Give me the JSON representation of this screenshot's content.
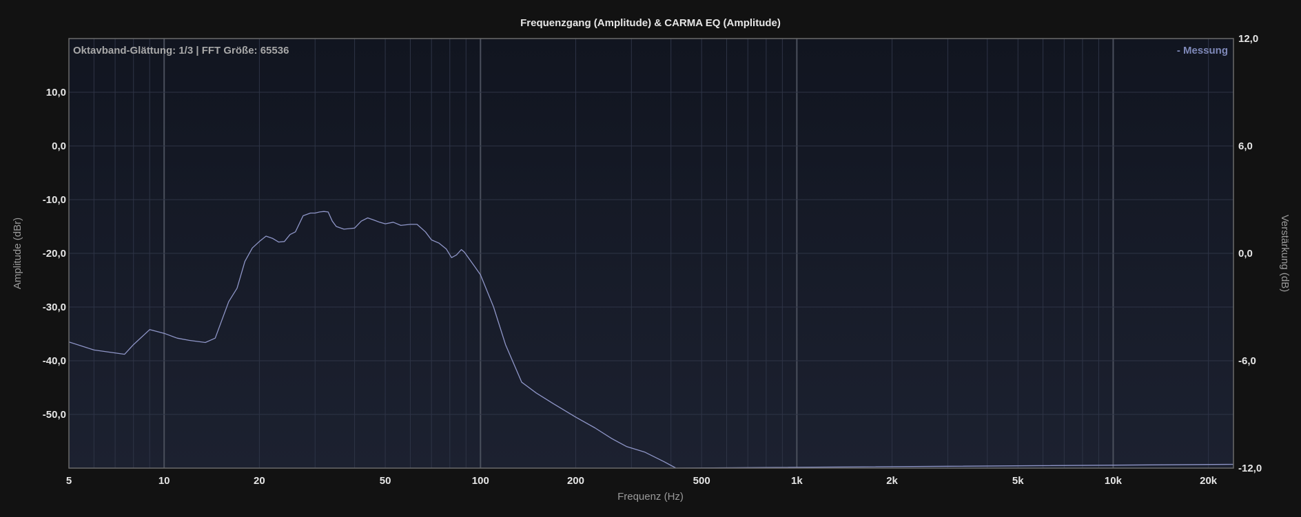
{
  "colors": {
    "page_background": "#121212",
    "plot_background_top": "#111520",
    "plot_background_bottom": "#1c2130",
    "grid_minor": "#2e3446",
    "grid_major": "#4a4f5c",
    "plot_border": "#6a6a6a",
    "series_line": "#8f96c8",
    "legend_text": "#7e88b8"
  },
  "chart_data": {
    "type": "line",
    "title": "Frequenzgang (Amplitude) & CARMA EQ (Amplitude)",
    "info_text": "Oktavband-Glättung: 1/3 | FFT Größe: 65536",
    "xlabel": "Frequenz (Hz)",
    "ylabel": "Amplitude (dBr)",
    "y2label": "Verstärkung (dB)",
    "x_scale": "log",
    "xlim": [
      5,
      24000
    ],
    "ylim": [
      -60,
      20
    ],
    "y2lim": [
      -12,
      12
    ],
    "grid": true,
    "legend_position": "top-right",
    "x_ticks": [
      5,
      10,
      20,
      50,
      100,
      200,
      500,
      1000,
      2000,
      5000,
      10000,
      20000
    ],
    "x_tick_labels": [
      "5",
      "10",
      "20",
      "50",
      "100",
      "200",
      "500",
      "1k",
      "2k",
      "5k",
      "10k",
      "20k"
    ],
    "y_ticks": [
      10,
      0,
      -10,
      -20,
      -30,
      -40,
      -50
    ],
    "y_tick_labels": [
      "10,0",
      "0,0",
      "-10,0",
      "-20,0",
      "-30,0",
      "-40,0",
      "-50,0"
    ],
    "y2_ticks": [
      12,
      6,
      0,
      -6,
      -12
    ],
    "y2_tick_labels": [
      "12,0",
      "6,0",
      "0,0",
      "-6,0",
      "-12,0"
    ],
    "series": [
      {
        "name": "Messung",
        "legend_label": "- Messung",
        "x": [
          5,
          6,
          7.5,
          8,
          9,
          10,
          11,
          12,
          13.5,
          14.5,
          16,
          17,
          18,
          19,
          20,
          21,
          22,
          23,
          24,
          25,
          26,
          27.5,
          29,
          30,
          31,
          32,
          33,
          34,
          35,
          37,
          40,
          42,
          44,
          46,
          48,
          50,
          53,
          56,
          60,
          63,
          67,
          70,
          74,
          78,
          81,
          84,
          87,
          89,
          92,
          96,
          100,
          110,
          120,
          135,
          150,
          170,
          200,
          230,
          260,
          290,
          330,
          380,
          415,
          24000
        ],
        "y": [
          -36.5,
          -38,
          -38.8,
          -37,
          -34.2,
          -34.9,
          -35.8,
          -36.2,
          -36.6,
          -35.8,
          -29,
          -26.5,
          -21.5,
          -19,
          -17.8,
          -16.8,
          -17.2,
          -17.9,
          -17.8,
          -16.5,
          -16,
          -13,
          -12.5,
          -12.5,
          -12.3,
          -12.2,
          -12.3,
          -14,
          -15,
          -15.5,
          -15.3,
          -14,
          -13.4,
          -13.8,
          -14.2,
          -14.5,
          -14.2,
          -14.8,
          -14.6,
          -14.6,
          -16,
          -17.5,
          -18.1,
          -19.2,
          -20.8,
          -20.3,
          -19.3,
          -19.8,
          -21,
          -22.5,
          -24,
          -30,
          -37,
          -44,
          -46,
          -48,
          -50.5,
          -52.5,
          -54.5,
          -56,
          -57,
          -58.8,
          -60,
          -59.3
        ]
      }
    ]
  }
}
